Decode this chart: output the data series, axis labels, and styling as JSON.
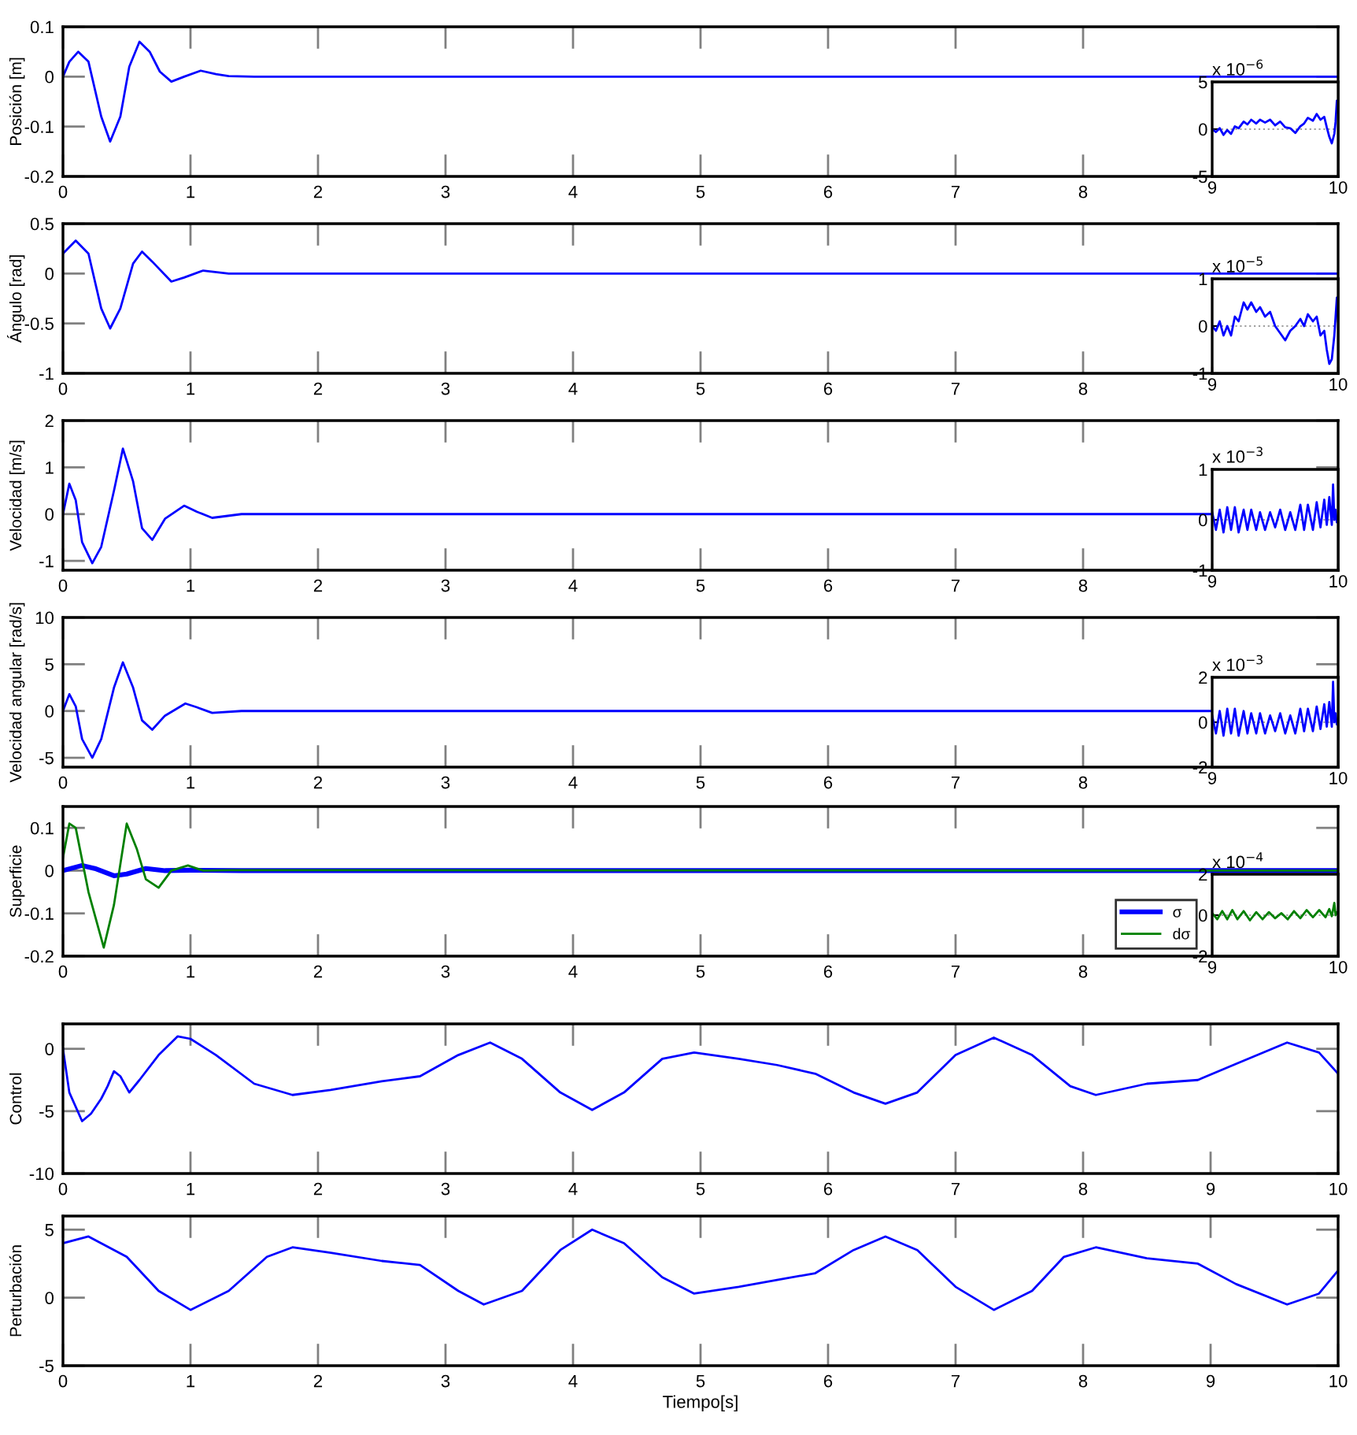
{
  "chart_data": [
    {
      "type": "line",
      "ylabel": "Posición [m]",
      "xlim": [
        0,
        10
      ],
      "ylim": [
        -0.2,
        0.1
      ],
      "xticks": [
        0,
        1,
        2,
        3,
        4,
        5,
        6,
        7,
        8
      ],
      "yticks": [
        -0.2,
        -0.1,
        0,
        0.1
      ],
      "series": [
        {
          "color": "#0000ff",
          "x": [
            0,
            0.05,
            0.12,
            0.2,
            0.3,
            0.37,
            0.45,
            0.52,
            0.6,
            0.68,
            0.76,
            0.85,
            0.95,
            1.08,
            1.2,
            1.3,
            1.5,
            2,
            10
          ],
          "values": [
            0,
            0.03,
            0.05,
            0.03,
            -0.08,
            -0.13,
            -0.08,
            0.02,
            0.07,
            0.05,
            0.01,
            -0.01,
            0.0,
            0.012,
            0.005,
            0.001,
            0,
            0,
            0
          ]
        }
      ]
    },
    {
      "type": "line",
      "xlim": [
        9,
        10
      ],
      "ylim": [
        -5,
        5
      ],
      "xticks": [
        9,
        10
      ],
      "yticks": [
        -5,
        0,
        5
      ],
      "annotations": [
        "x 10$^{−6}$"
      ],
      "ref_lines": [
        {
          "axis": "y",
          "value": 0,
          "color": "#a0a0a0",
          "line_style": "dotted"
        }
      ],
      "series": [
        {
          "color": "#0000ff",
          "x": [
            9,
            9.03,
            9.06,
            9.09,
            9.12,
            9.15,
            9.18,
            9.21,
            9.25,
            9.28,
            9.31,
            9.35,
            9.38,
            9.42,
            9.46,
            9.5,
            9.54,
            9.58,
            9.62,
            9.66,
            9.7,
            9.73,
            9.76,
            9.8,
            9.83,
            9.86,
            9.89,
            9.91,
            9.93,
            9.95,
            9.97,
            9.98,
            9.99,
            10
          ],
          "values": [
            0,
            -0.3,
            0.1,
            -0.6,
            -0.1,
            -0.5,
            0.3,
            0.1,
            0.8,
            0.5,
            1.0,
            0.6,
            1.0,
            0.7,
            1.0,
            0.4,
            0.8,
            0.2,
            0.1,
            -0.4,
            0.3,
            0.6,
            1.2,
            0.9,
            1.6,
            1.0,
            1.3,
            0.2,
            -0.8,
            -1.5,
            -0.5,
            0.8,
            3.0,
            1.8
          ]
        }
      ]
    },
    {
      "type": "line",
      "ylabel": "Ángulo [rad]",
      "xlim": [
        0,
        10
      ],
      "ylim": [
        -1,
        0.5
      ],
      "xticks": [
        0,
        1,
        2,
        3,
        4,
        5,
        6,
        7,
        8
      ],
      "yticks": [
        -1,
        -0.5,
        0,
        0.5
      ],
      "series": [
        {
          "color": "#0000ff",
          "x": [
            0,
            0.1,
            0.2,
            0.3,
            0.37,
            0.45,
            0.55,
            0.62,
            0.7,
            0.85,
            0.95,
            1.1,
            1.3,
            2,
            10
          ],
          "values": [
            0.2,
            0.33,
            0.2,
            -0.35,
            -0.55,
            -0.35,
            0.1,
            0.22,
            0.12,
            -0.08,
            -0.04,
            0.03,
            0.0,
            0,
            0
          ]
        }
      ]
    },
    {
      "type": "line",
      "xlim": [
        9,
        10
      ],
      "ylim": [
        -1,
        1
      ],
      "xticks": [
        9,
        10
      ],
      "yticks": [
        -1,
        0,
        1
      ],
      "annotations": [
        "x 10$^{−5}$"
      ],
      "ref_lines": [
        {
          "axis": "y",
          "value": 0,
          "color": "#a0a0a0",
          "line_style": "dotted"
        }
      ],
      "series": [
        {
          "color": "#0000ff",
          "x": [
            9,
            9.03,
            9.06,
            9.09,
            9.12,
            9.15,
            9.18,
            9.21,
            9.25,
            9.28,
            9.31,
            9.35,
            9.38,
            9.42,
            9.46,
            9.5,
            9.54,
            9.58,
            9.62,
            9.66,
            9.7,
            9.73,
            9.76,
            9.8,
            9.83,
            9.86,
            9.89,
            9.91,
            9.93,
            9.95,
            9.97,
            9.98,
            9.99,
            10
          ],
          "values": [
            0,
            -0.1,
            0.1,
            -0.2,
            0.0,
            -0.2,
            0.2,
            0.1,
            0.5,
            0.35,
            0.5,
            0.3,
            0.4,
            0.2,
            0.3,
            0.0,
            -0.15,
            -0.3,
            -0.1,
            0.0,
            0.15,
            0.0,
            0.25,
            0.1,
            0.2,
            -0.2,
            -0.1,
            -0.5,
            -0.8,
            -0.7,
            -0.2,
            0.2,
            0.6,
            0.1
          ]
        }
      ]
    },
    {
      "type": "line",
      "ylabel": "Velocidad [m/s]",
      "xlim": [
        0,
        10
      ],
      "ylim": [
        -1.2,
        2
      ],
      "xticks": [
        0,
        1,
        2,
        3,
        4,
        5,
        6,
        7,
        8
      ],
      "yticks": [
        -1,
        0,
        1,
        2
      ],
      "series": [
        {
          "color": "#0000ff",
          "x": [
            0,
            0.05,
            0.1,
            0.15,
            0.23,
            0.3,
            0.4,
            0.47,
            0.55,
            0.62,
            0.7,
            0.8,
            0.95,
            1.05,
            1.17,
            1.4,
            2,
            10
          ],
          "values": [
            0,
            0.65,
            0.3,
            -0.6,
            -1.05,
            -0.7,
            0.5,
            1.4,
            0.7,
            -0.3,
            -0.55,
            -0.1,
            0.18,
            0.05,
            -0.08,
            0.0,
            0,
            0
          ]
        }
      ]
    },
    {
      "type": "line",
      "xlim": [
        9,
        10
      ],
      "ylim": [
        -1,
        1
      ],
      "xticks": [
        9,
        10
      ],
      "yticks": [
        -1,
        0,
        1
      ],
      "annotations": [
        "x 10$^{−3}$"
      ],
      "ref_lines": [
        {
          "axis": "y",
          "value": 0,
          "color": "#a0a0a0",
          "line_style": "dotted"
        }
      ],
      "series": [
        {
          "color": "#0000ff",
          "x": [
            9,
            9.03,
            9.06,
            9.09,
            9.12,
            9.15,
            9.18,
            9.21,
            9.25,
            9.28,
            9.31,
            9.35,
            9.38,
            9.42,
            9.46,
            9.5,
            9.54,
            9.58,
            9.62,
            9.66,
            9.7,
            9.73,
            9.76,
            9.8,
            9.83,
            9.86,
            9.89,
            9.91,
            9.93,
            9.95,
            9.96,
            9.97,
            9.98,
            9.99,
            10
          ],
          "values": [
            0.15,
            -0.2,
            0.2,
            -0.25,
            0.25,
            -0.2,
            0.25,
            -0.25,
            0.2,
            -0.2,
            0.2,
            -0.2,
            0.15,
            -0.2,
            0.15,
            -0.15,
            0.2,
            -0.2,
            0.15,
            -0.2,
            0.3,
            -0.2,
            0.3,
            -0.2,
            0.35,
            -0.15,
            0.4,
            -0.1,
            0.45,
            -0.1,
            0.7,
            0.0,
            0.2,
            -0.05,
            0.05
          ]
        }
      ]
    },
    {
      "type": "line",
      "ylabel": "Velocidad angular [rad/s]",
      "xlim": [
        0,
        10
      ],
      "ylim": [
        -6,
        10
      ],
      "xticks": [
        0,
        1,
        2,
        3,
        4,
        5,
        6,
        7,
        8
      ],
      "yticks": [
        -5,
        0,
        5,
        10
      ],
      "series": [
        {
          "color": "#0000ff",
          "x": [
            0,
            0.05,
            0.1,
            0.15,
            0.23,
            0.3,
            0.4,
            0.47,
            0.55,
            0.62,
            0.7,
            0.8,
            0.96,
            1.05,
            1.17,
            1.4,
            2,
            10
          ],
          "values": [
            0,
            1.8,
            0.5,
            -3,
            -5,
            -3,
            2.5,
            5.2,
            2.5,
            -1,
            -2,
            -0.5,
            0.8,
            0.4,
            -0.2,
            0,
            0,
            0
          ]
        }
      ]
    },
    {
      "type": "line",
      "xlim": [
        9,
        10
      ],
      "ylim": [
        -2,
        2
      ],
      "xticks": [
        9,
        10
      ],
      "yticks": [
        -2,
        0,
        2
      ],
      "annotations": [
        "x 10$^{−3}$"
      ],
      "ref_lines": [
        {
          "axis": "y",
          "value": 0,
          "color": "#a0a0a0",
          "line_style": "dotted"
        }
      ],
      "series": [
        {
          "color": "#0000ff",
          "x": [
            9,
            9.03,
            9.06,
            9.09,
            9.12,
            9.15,
            9.18,
            9.21,
            9.25,
            9.28,
            9.31,
            9.35,
            9.38,
            9.42,
            9.46,
            9.5,
            9.54,
            9.58,
            9.62,
            9.66,
            9.7,
            9.73,
            9.76,
            9.8,
            9.83,
            9.86,
            9.89,
            9.91,
            9.93,
            9.95,
            9.96,
            9.97,
            9.98,
            9.99,
            10
          ],
          "values": [
            0.3,
            -0.5,
            0.5,
            -0.6,
            0.6,
            -0.5,
            0.6,
            -0.6,
            0.5,
            -0.5,
            0.4,
            -0.5,
            0.4,
            -0.5,
            0.3,
            -0.4,
            0.4,
            -0.5,
            0.3,
            -0.5,
            0.6,
            -0.4,
            0.6,
            -0.4,
            0.7,
            -0.3,
            0.8,
            -0.2,
            0.9,
            -0.2,
            1.8,
            0.0,
            0.4,
            -0.1,
            0.1
          ]
        }
      ]
    },
    {
      "type": "line",
      "ylabel": "Superficie",
      "xlim": [
        0,
        10
      ],
      "ylim": [
        -0.2,
        0.15
      ],
      "xticks": [
        0,
        1,
        2,
        3,
        4,
        5,
        6,
        7,
        8
      ],
      "yticks": [
        -0.2,
        -0.1,
        0,
        0.1
      ],
      "legend": "bottom right",
      "series": [
        {
          "name": "σ",
          "color": "#0000ff",
          "x": [
            0,
            0.15,
            0.25,
            0.4,
            0.5,
            0.65,
            0.8,
            1.0,
            1.4,
            10
          ],
          "values": [
            0,
            0.012,
            0.005,
            -0.012,
            -0.008,
            0.005,
            0.0,
            0.001,
            0,
            0
          ]
        },
        {
          "name": "dσ",
          "color": "#008000",
          "x": [
            0,
            0.05,
            0.1,
            0.2,
            0.32,
            0.4,
            0.5,
            0.58,
            0.65,
            0.75,
            0.85,
            0.98,
            1.1,
            1.3,
            10
          ],
          "values": [
            0.03,
            0.11,
            0.1,
            -0.05,
            -0.18,
            -0.08,
            0.11,
            0.05,
            -0.02,
            -0.04,
            0.0,
            0.012,
            0.0,
            0.001,
            0
          ]
        }
      ]
    },
    {
      "type": "line",
      "xlim": [
        9,
        10
      ],
      "ylim": [
        -2,
        2
      ],
      "xticks": [
        9,
        10
      ],
      "yticks": [
        -2,
        0,
        2
      ],
      "annotations": [
        "x 10$^{−4}$"
      ],
      "ref_lines": [
        {
          "axis": "y",
          "value": 0,
          "color": "#a0a0a0",
          "line_style": "dotted"
        }
      ],
      "series": [
        {
          "color": "#008000",
          "x": [
            9,
            9.04,
            9.08,
            9.12,
            9.16,
            9.2,
            9.25,
            9.3,
            9.35,
            9.4,
            9.45,
            9.5,
            9.55,
            9.6,
            9.65,
            9.7,
            9.75,
            9.8,
            9.85,
            9.9,
            9.93,
            9.95,
            9.97,
            9.98,
            9.99,
            10
          ],
          "values": [
            0.1,
            -0.2,
            0.2,
            -0.2,
            0.25,
            -0.2,
            0.2,
            -0.25,
            0.15,
            -0.2,
            0.15,
            -0.15,
            0.1,
            -0.2,
            0.2,
            -0.15,
            0.25,
            -0.1,
            0.25,
            -0.1,
            0.3,
            -0.05,
            0.6,
            0.0,
            0.15,
            0.05
          ]
        }
      ]
    },
    {
      "type": "line",
      "ylabel": "Control",
      "xlim": [
        0,
        10
      ],
      "ylim": [
        -10,
        2
      ],
      "xticks": [
        0,
        1,
        2,
        3,
        4,
        5,
        6,
        7,
        8,
        9,
        10
      ],
      "yticks": [
        -10,
        -5,
        0
      ],
      "series": [
        {
          "color": "#0000ff",
          "x": [
            0,
            0.05,
            0.15,
            0.22,
            0.3,
            0.35,
            0.4,
            0.45,
            0.52,
            0.6,
            0.75,
            0.9,
            1.0,
            1.2,
            1.5,
            1.8,
            2.1,
            2.5,
            2.8,
            3.1,
            3.35,
            3.6,
            3.9,
            4.15,
            4.4,
            4.7,
            4.95,
            5.3,
            5.6,
            5.9,
            6.2,
            6.45,
            6.7,
            7.0,
            7.3,
            7.6,
            7.9,
            8.1,
            8.5,
            8.9,
            9.2,
            9.6,
            9.85,
            10
          ],
          "values": [
            0,
            -3.5,
            -5.8,
            -5.2,
            -4,
            -3,
            -1.8,
            -2.2,
            -3.5,
            -2.5,
            -0.5,
            1.0,
            0.8,
            -0.5,
            -2.8,
            -3.7,
            -3.3,
            -2.6,
            -2.2,
            -0.5,
            0.5,
            -0.8,
            -3.5,
            -4.9,
            -3.5,
            -0.8,
            -0.3,
            -0.8,
            -1.3,
            -2,
            -3.5,
            -4.4,
            -3.5,
            -0.5,
            0.9,
            -0.5,
            -3,
            -3.7,
            -2.8,
            -2.5,
            -1.2,
            0.5,
            -0.3,
            -2
          ]
        }
      ]
    },
    {
      "type": "line",
      "ylabel": "Perturbación",
      "xlabel": "Tiempo[s]",
      "xlim": [
        0,
        10
      ],
      "ylim": [
        -5,
        6
      ],
      "xticks": [
        0,
        1,
        2,
        3,
        4,
        5,
        6,
        7,
        8,
        9,
        10
      ],
      "yticks": [
        -5,
        0,
        5
      ],
      "series": [
        {
          "color": "#0000ff",
          "x": [
            0,
            0.2,
            0.5,
            0.75,
            1.0,
            1.3,
            1.6,
            1.8,
            2.1,
            2.5,
            2.8,
            3.1,
            3.3,
            3.6,
            3.9,
            4.15,
            4.4,
            4.7,
            4.95,
            5.3,
            5.6,
            5.9,
            6.2,
            6.45,
            6.7,
            7.0,
            7.3,
            7.6,
            7.85,
            8.1,
            8.5,
            8.9,
            9.2,
            9.6,
            9.85,
            10
          ],
          "values": [
            4,
            4.5,
            3,
            0.5,
            -0.9,
            0.5,
            3,
            3.7,
            3.3,
            2.7,
            2.4,
            0.5,
            -0.5,
            0.5,
            3.5,
            5,
            4,
            1.5,
            0.3,
            0.8,
            1.3,
            1.8,
            3.5,
            4.5,
            3.5,
            0.8,
            -0.9,
            0.5,
            3,
            3.7,
            2.9,
            2.5,
            1.0,
            -0.5,
            0.3,
            2
          ]
        }
      ]
    }
  ]
}
